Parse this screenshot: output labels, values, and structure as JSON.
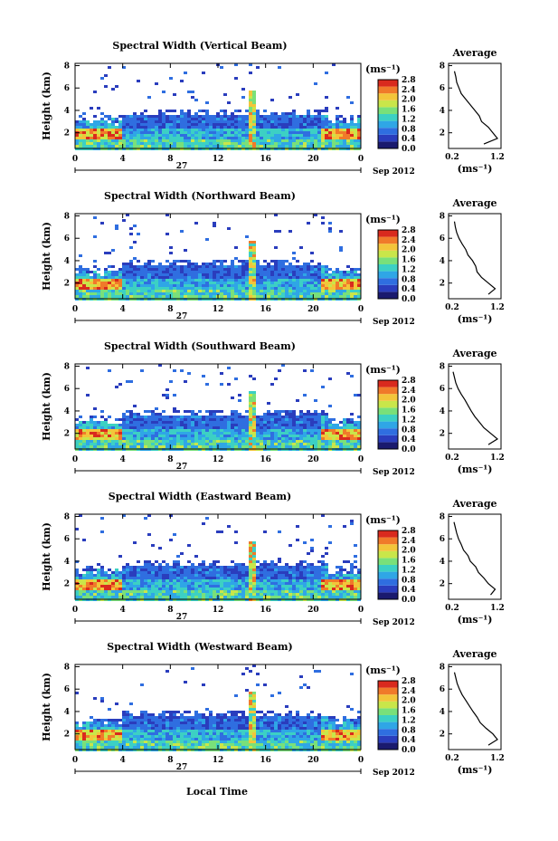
{
  "chart_data": [
    {
      "type": "heatmap",
      "title": "Spectral Width (Vertical Beam)",
      "ylabel": "Height (km)",
      "x_ticks": [
        "0",
        "4",
        "8",
        "12",
        "16",
        "20",
        "0"
      ],
      "y_ticks": [
        "2",
        "4",
        "6",
        "8"
      ],
      "ylim": [
        0.6,
        8.2
      ],
      "xlim": [
        0,
        24
      ],
      "date_label": "Sep 2012",
      "day_label": "27",
      "colorbar": {
        "unit": "(ms⁻¹)",
        "ticks": [
          "0.0",
          "0.4",
          "0.8",
          "1.2",
          "1.6",
          "2.0",
          "2.4",
          "2.8"
        ],
        "range": [
          0,
          3
        ]
      },
      "avg_title": "Average",
      "avg_xticks": [
        "0.2",
        "1.2"
      ],
      "avg_xlabel": "(ms⁻¹)",
      "avg_yticks": [
        "2",
        "4",
        "6",
        "8"
      ],
      "avg_profile": {
        "height_km": [
          1.0,
          1.5,
          2.0,
          2.5,
          3.0,
          3.5,
          4.0,
          4.5,
          5.0,
          5.5,
          6.0,
          6.5,
          7.0,
          7.5
        ],
        "width": [
          0.9,
          1.2,
          1.1,
          1.0,
          0.85,
          0.8,
          0.7,
          0.6,
          0.5,
          0.4,
          0.35,
          0.3,
          0.28,
          0.25
        ]
      },
      "seed": 11
    },
    {
      "type": "heatmap",
      "title": "Spectral Width (Northward Beam)",
      "ylabel": "Height (km)",
      "x_ticks": [
        "0",
        "4",
        "8",
        "12",
        "16",
        "20",
        "0"
      ],
      "y_ticks": [
        "2",
        "4",
        "6",
        "8"
      ],
      "ylim": [
        0.6,
        8.2
      ],
      "xlim": [
        0,
        24
      ],
      "date_label": "Sep 2012",
      "day_label": "27",
      "colorbar": {
        "unit": "(ms⁻¹)",
        "ticks": [
          "0.0",
          "0.4",
          "0.8",
          "1.2",
          "1.6",
          "2.0",
          "2.4",
          "2.8"
        ],
        "range": [
          0,
          3
        ]
      },
      "avg_title": "Average",
      "avg_xticks": [
        "0.2",
        "1.2"
      ],
      "avg_xlabel": "(ms⁻¹)",
      "avg_yticks": [
        "2",
        "4",
        "6",
        "8"
      ],
      "avg_profile": {
        "height_km": [
          1.0,
          1.5,
          2.0,
          2.5,
          3.0,
          3.5,
          4.0,
          4.5,
          5.0,
          5.5,
          6.0,
          6.5,
          7.0,
          7.5
        ],
        "width": [
          1.0,
          1.15,
          1.0,
          0.85,
          0.75,
          0.72,
          0.65,
          0.55,
          0.5,
          0.42,
          0.35,
          0.3,
          0.27,
          0.25
        ]
      },
      "seed": 23
    },
    {
      "type": "heatmap",
      "title": "Spectral Width (Southward Beam)",
      "ylabel": "Height (km)",
      "x_ticks": [
        "0",
        "4",
        "8",
        "12",
        "16",
        "20",
        "0"
      ],
      "y_ticks": [
        "2",
        "4",
        "6",
        "8"
      ],
      "ylim": [
        0.6,
        8.2
      ],
      "xlim": [
        0,
        24
      ],
      "date_label": "Sep 2012",
      "day_label": "27",
      "colorbar": {
        "unit": "(ms⁻¹)",
        "ticks": [
          "0.0",
          "0.4",
          "0.8",
          "1.2",
          "1.6",
          "2.0",
          "2.4",
          "2.8"
        ],
        "range": [
          0,
          3
        ]
      },
      "avg_title": "Average",
      "avg_xticks": [
        "0.2",
        "1.2"
      ],
      "avg_xlabel": "(ms⁻¹)",
      "avg_yticks": [
        "2",
        "4",
        "6",
        "8"
      ],
      "avg_profile": {
        "height_km": [
          1.0,
          1.5,
          2.0,
          2.5,
          3.0,
          3.5,
          4.0,
          4.5,
          5.0,
          5.5,
          6.0,
          6.5,
          7.0,
          7.5
        ],
        "width": [
          1.0,
          1.2,
          1.05,
          0.9,
          0.8,
          0.7,
          0.62,
          0.55,
          0.48,
          0.4,
          0.33,
          0.28,
          0.25,
          0.22
        ]
      },
      "seed": 37
    },
    {
      "type": "heatmap",
      "title": "Spectral Width (Eastward Beam)",
      "ylabel": "Height (km)",
      "x_ticks": [
        "0",
        "4",
        "8",
        "12",
        "16",
        "20",
        "0"
      ],
      "y_ticks": [
        "2",
        "4",
        "6",
        "8"
      ],
      "ylim": [
        0.6,
        8.2
      ],
      "xlim": [
        0,
        24
      ],
      "date_label": "Sep 2012",
      "day_label": "27",
      "colorbar": {
        "unit": "(ms⁻¹)",
        "ticks": [
          "0.0",
          "0.4",
          "0.8",
          "1.2",
          "1.6",
          "2.0",
          "2.4",
          "2.8"
        ],
        "range": [
          0,
          3
        ]
      },
      "avg_title": "Average",
      "avg_xticks": [
        "0.2",
        "1.2"
      ],
      "avg_xlabel": "(ms⁻¹)",
      "avg_yticks": [
        "2",
        "4",
        "6",
        "8"
      ],
      "avg_profile": {
        "height_km": [
          1.0,
          1.5,
          2.0,
          2.5,
          3.0,
          3.5,
          4.0,
          4.5,
          5.0,
          5.5,
          6.0,
          6.5,
          7.0,
          7.5
        ],
        "width": [
          1.05,
          1.15,
          1.0,
          0.9,
          0.78,
          0.72,
          0.6,
          0.55,
          0.45,
          0.4,
          0.34,
          0.3,
          0.27,
          0.24
        ]
      },
      "seed": 41
    },
    {
      "type": "heatmap",
      "title": "Spectral Width (Westward Beam)",
      "ylabel": "Height (km)",
      "x_ticks": [
        "0",
        "4",
        "8",
        "12",
        "16",
        "20",
        "0"
      ],
      "y_ticks": [
        "2",
        "4",
        "6",
        "8"
      ],
      "ylim": [
        0.6,
        8.2
      ],
      "xlim": [
        0,
        24
      ],
      "date_label": "Sep 2012",
      "day_label": "27",
      "colorbar": {
        "unit": "(ms⁻¹)",
        "ticks": [
          "0.0",
          "0.4",
          "0.8",
          "1.2",
          "1.6",
          "2.0",
          "2.4",
          "2.8"
        ],
        "range": [
          0,
          3
        ]
      },
      "avg_title": "Average",
      "avg_xticks": [
        "0.2",
        "1.2"
      ],
      "avg_xlabel": "(ms⁻¹)",
      "avg_yticks": [
        "2",
        "4",
        "6",
        "8"
      ],
      "avg_profile": {
        "height_km": [
          1.0,
          1.5,
          2.0,
          2.5,
          3.0,
          3.5,
          4.0,
          4.5,
          5.0,
          5.5,
          6.0,
          6.5,
          7.0,
          7.5
        ],
        "width": [
          1.0,
          1.2,
          1.1,
          0.95,
          0.82,
          0.75,
          0.66,
          0.58,
          0.5,
          0.42,
          0.36,
          0.31,
          0.28,
          0.25
        ]
      },
      "seed": 53
    }
  ],
  "xlabel": "Local Time",
  "colors": [
    "#1a1a6e",
    "#2a3dbd",
    "#2f6ee0",
    "#2fa6e6",
    "#3cd0c4",
    "#79e07a",
    "#c9e64a",
    "#f3c53a",
    "#f07a2a",
    "#d92a1e"
  ]
}
